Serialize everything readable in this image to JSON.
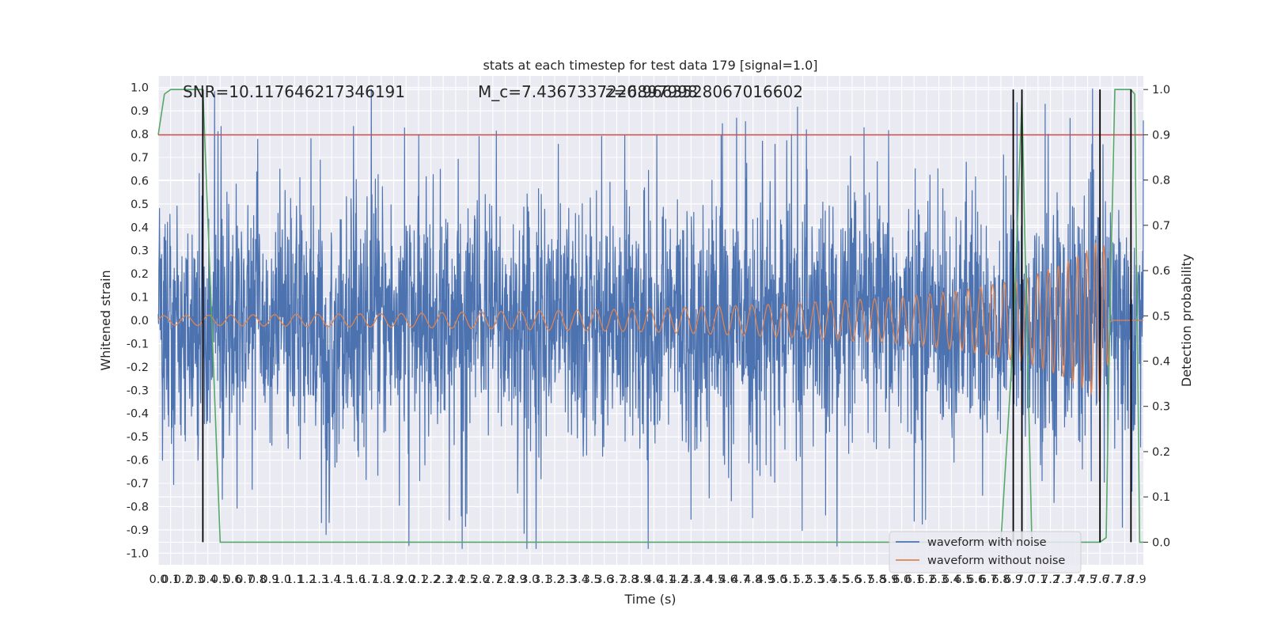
{
  "chart_data": {
    "type": "line",
    "title": "stats at each timestep for test data 179 [signal=1.0]",
    "xlabel": "Time (s)",
    "ylabel": "Whitened strain",
    "ylabel_right": "Detection probability",
    "xlim": [
      0,
      7.95
    ],
    "ylim": [
      -1.05,
      1.05
    ],
    "ylim_right": [
      -0.05,
      1.03
    ],
    "x_ticks": [
      0.0,
      0.1,
      0.2,
      0.3,
      0.4,
      0.5,
      0.6,
      0.7,
      0.8,
      0.9,
      1.0,
      1.1,
      1.2,
      1.3,
      1.4,
      1.5,
      1.6,
      1.7,
      1.8,
      1.9,
      2.0,
      2.1,
      2.2,
      2.3,
      2.4,
      2.5,
      2.6,
      2.7,
      2.8,
      2.9,
      3.0,
      3.1,
      3.2,
      3.3,
      3.4,
      3.5,
      3.6,
      3.7,
      3.8,
      3.9,
      4.0,
      4.1,
      4.2,
      4.3,
      4.4,
      4.5,
      4.6,
      4.7,
      4.8,
      4.9,
      5.0,
      5.1,
      5.2,
      5.3,
      5.4,
      5.5,
      5.6,
      5.7,
      5.8,
      5.9,
      6.0,
      6.1,
      6.2,
      6.3,
      6.4,
      6.5,
      6.6,
      6.7,
      6.8,
      6.9,
      7.0,
      7.1,
      7.2,
      7.3,
      7.4,
      7.5,
      7.6,
      7.7,
      7.8,
      7.9
    ],
    "y_ticks": [
      -1.0,
      -0.9,
      -0.8,
      -0.7,
      -0.6,
      -0.5,
      -0.4,
      -0.3,
      -0.2,
      -0.1,
      0.0,
      0.1,
      0.2,
      0.3,
      0.4,
      0.5,
      0.6,
      0.7,
      0.8,
      0.9,
      1.0
    ],
    "y_ticks_right": [
      0.0,
      0.1,
      0.2,
      0.3,
      0.4,
      0.5,
      0.6,
      0.7,
      0.8,
      0.9,
      1.0
    ],
    "grid": true,
    "legend_position": "lower-right",
    "series": [
      {
        "name": "waveform with noise",
        "color": "#4c72b0",
        "axis": "left",
        "description_points": "noisy whitened strain, amplitude mostly within ±0.6 with peaks near ±1.0"
      },
      {
        "name": "waveform without noise",
        "color": "#dd8452",
        "axis": "left",
        "x": [
          0.0,
          1.0,
          2.0,
          3.0,
          4.0,
          5.0,
          6.0,
          6.5,
          7.0,
          7.3,
          7.5,
          7.6,
          7.65,
          7.68,
          7.7,
          7.95
        ],
        "envelope": [
          0.02,
          0.025,
          0.03,
          0.04,
          0.05,
          0.07,
          0.1,
          0.13,
          0.18,
          0.24,
          0.3,
          0.35,
          0.3,
          0.05,
          0.0,
          0.0
        ]
      },
      {
        "color": "#55a868",
        "axis": "right",
        "x": [
          0.0,
          0.05,
          0.1,
          0.2,
          0.3,
          0.36,
          0.5,
          0.55,
          0.6,
          1.0,
          2.0,
          3.0,
          4.0,
          5.0,
          6.0,
          6.8,
          6.9,
          6.97,
          7.0,
          7.05,
          7.15,
          7.5,
          7.6,
          7.65,
          7.68,
          7.72,
          7.8,
          7.85,
          7.88,
          7.92,
          7.95
        ],
        "values": [
          0.9,
          0.99,
          1.0,
          1.0,
          1.0,
          1.0,
          0.0,
          0.0,
          0.0,
          0.0,
          0.0,
          0.0,
          0.0,
          0.0,
          0.0,
          0.0,
          0.45,
          0.98,
          0.6,
          0.0,
          0.0,
          0.0,
          0.0,
          0.01,
          0.5,
          1.0,
          1.0,
          1.0,
          0.99,
          0.0,
          0.0
        ]
      },
      {
        "color": "#c44e52",
        "axis": "right",
        "values": [
          0.9
        ]
      }
    ],
    "vertical_lines_x": [
      0.36,
      6.9,
      6.97,
      7.6,
      7.85
    ],
    "annotations": [
      {
        "text": "SNR=10.117646217346191"
      },
      {
        "text": "M_c=7.4367337226897998"
      },
      {
        "text": "z=0.9663528067016602"
      }
    ]
  }
}
